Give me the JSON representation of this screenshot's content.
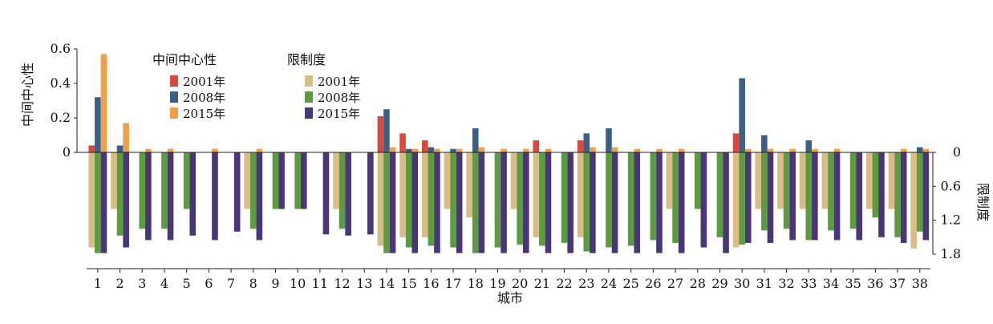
{
  "chart_data": {
    "type": "bar",
    "xlabel": "城市",
    "categories": [
      "1",
      "2",
      "3",
      "4",
      "5",
      "6",
      "7",
      "8",
      "9",
      "10",
      "11",
      "12",
      "13",
      "14",
      "15",
      "16",
      "17",
      "18",
      "19",
      "20",
      "21",
      "22",
      "23",
      "24",
      "25",
      "26",
      "27",
      "28",
      "29",
      "30",
      "31",
      "32",
      "33",
      "34",
      "35",
      "36",
      "37",
      "38"
    ],
    "top_panel": {
      "ylabel": "中间中心性",
      "ylim": [
        0,
        0.6
      ],
      "yticks": [
        "0",
        "0.2",
        "0.4",
        "0.6"
      ],
      "legend_title": "中间中心性",
      "series": [
        {
          "name": "2001年",
          "color": "#d94a3c",
          "values": [
            0.04,
            0,
            0,
            0,
            0,
            0,
            0,
            0,
            0,
            0,
            0,
            0,
            0,
            0.21,
            0.11,
            0.07,
            0,
            0,
            0,
            0,
            0.07,
            0,
            0.07,
            0,
            0,
            0,
            0,
            0,
            0,
            0.11,
            0,
            0,
            0,
            0,
            0,
            0,
            0,
            0
          ]
        },
        {
          "name": "2008年",
          "color": "#3b6088",
          "values": [
            0.32,
            0.04,
            0,
            0,
            0,
            0,
            0,
            0,
            0,
            0,
            0,
            0,
            0,
            0.25,
            0.02,
            0.03,
            0.02,
            0.14,
            0,
            0,
            0,
            0,
            0.11,
            0.14,
            0,
            0,
            0,
            0,
            0,
            0.43,
            0.1,
            0,
            0.07,
            0,
            0,
            0,
            0,
            0.03
          ]
        },
        {
          "name": "2015年",
          "color": "#f0a04a",
          "values": [
            0.57,
            0.17,
            0.02,
            0.02,
            0,
            0.02,
            0,
            0.02,
            0,
            0,
            0,
            0,
            0,
            0.03,
            0.02,
            0.02,
            0.02,
            0.03,
            0.02,
            0.02,
            0.02,
            0,
            0.03,
            0.03,
            0.02,
            0.02,
            0.02,
            0,
            0,
            0.02,
            0.02,
            0.02,
            0.02,
            0.02,
            0,
            0,
            0.02,
            0.02
          ]
        }
      ]
    },
    "bottom_panel": {
      "ylabel": "限制度",
      "ylim": [
        0,
        1.8
      ],
      "yticks": [
        "0",
        "0.6",
        "1.2",
        "1.8"
      ],
      "inverted": true,
      "legend_title": "限制度",
      "series": [
        {
          "name": "2001年",
          "color": "#dcbc86",
          "values": [
            1.68,
            1.0,
            0,
            0,
            0,
            0,
            0,
            1.0,
            0,
            0,
            0,
            1.0,
            0,
            1.65,
            1.5,
            1.5,
            1.0,
            1.15,
            0,
            1.0,
            1.5,
            0,
            1.5,
            0,
            0,
            0,
            1.0,
            0,
            0,
            1.68,
            1.0,
            1.0,
            1.0,
            1.0,
            0,
            1.0,
            1.0,
            1.7
          ]
        },
        {
          "name": "2008年",
          "color": "#5d9b40",
          "values": [
            1.78,
            1.47,
            1.35,
            1.35,
            1.0,
            0,
            0,
            1.35,
            1.0,
            1.0,
            0,
            1.35,
            0,
            1.78,
            1.68,
            1.65,
            1.68,
            1.78,
            1.68,
            1.63,
            1.65,
            1.6,
            1.75,
            1.68,
            1.65,
            1.55,
            1.6,
            1.0,
            1.5,
            1.63,
            1.38,
            1.35,
            1.55,
            1.38,
            1.35,
            1.15,
            1.5,
            1.4
          ]
        },
        {
          "name": "2015年",
          "color": "#4a3578",
          "values": [
            1.78,
            1.68,
            1.55,
            1.55,
            1.47,
            1.55,
            1.4,
            1.55,
            1.0,
            1.0,
            1.45,
            1.47,
            1.45,
            1.78,
            1.78,
            1.78,
            1.78,
            1.78,
            1.78,
            1.78,
            1.78,
            1.78,
            1.78,
            1.78,
            1.78,
            1.78,
            1.78,
            1.68,
            1.78,
            1.6,
            1.6,
            1.55,
            1.55,
            1.55,
            1.55,
            1.5,
            1.6,
            1.55
          ]
        }
      ]
    }
  }
}
